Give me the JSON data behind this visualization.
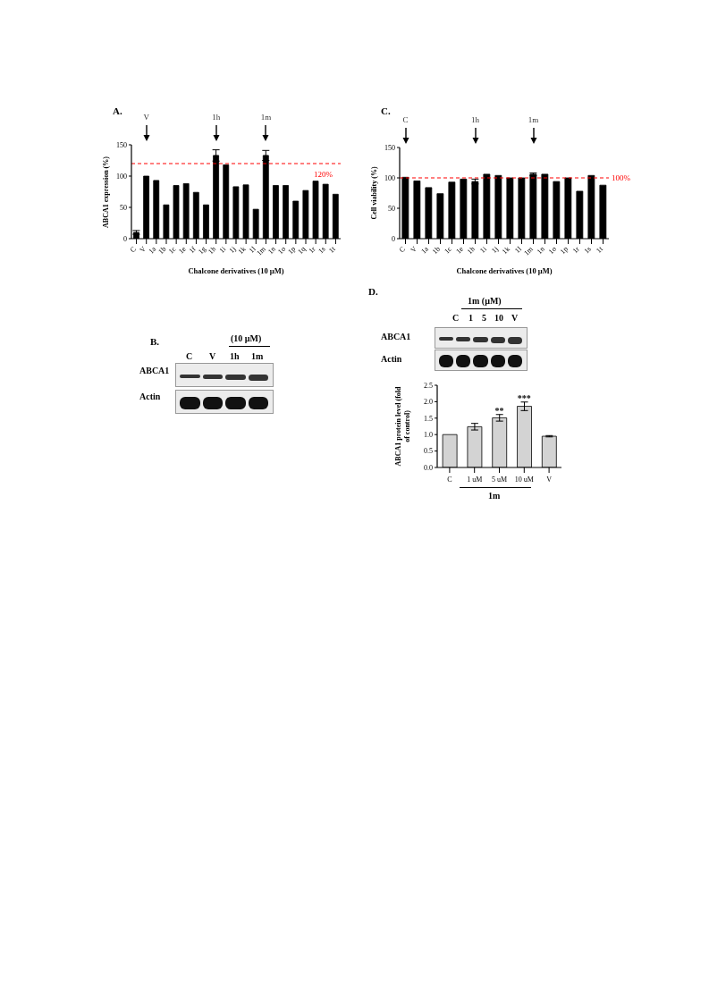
{
  "chart_data": [
    {
      "type": "bar",
      "title": "A.",
      "categories": [
        "C",
        "V",
        "1a",
        "1b",
        "1c",
        "1e",
        "1f",
        "1g",
        "1h",
        "1i",
        "1j",
        "1k",
        "1l",
        "1m",
        "1n",
        "1o",
        "1p",
        "1q",
        "1r",
        "1s",
        "1t"
      ],
      "values": [
        10,
        100,
        93,
        54,
        85,
        88,
        74,
        54,
        133,
        118,
        83,
        86,
        47,
        133,
        85,
        85,
        60,
        77,
        92,
        87,
        71
      ],
      "errors": [
        3,
        null,
        null,
        null,
        null,
        null,
        null,
        null,
        9,
        null,
        null,
        null,
        null,
        8,
        null,
        null,
        null,
        null,
        null,
        null,
        null
      ],
      "color": "#000000",
      "xlabel": "Chalcone derivatives (10 µM)",
      "ylabel": "ABCA1 expression (%)",
      "ylim": [
        0,
        150
      ],
      "yticks": [
        0,
        50,
        100,
        150
      ],
      "ref_lines": [
        {
          "axis": "y",
          "value": 120,
          "label": "120%",
          "color": "#ff0000",
          "line_style": "dashed"
        }
      ],
      "annotations": [
        "V",
        "1h",
        "1m"
      ]
    },
    {
      "type": "bar",
      "title": "C.",
      "categories": [
        "C",
        "V",
        "1a",
        "1b",
        "1c",
        "1e",
        "1h",
        "1i",
        "1j",
        "1k",
        "1l",
        "1m",
        "1n",
        "1o",
        "1p",
        "1r",
        "1s",
        "1t"
      ],
      "values": [
        101,
        95,
        84,
        74,
        93,
        98,
        94,
        106,
        104,
        100,
        100,
        106,
        106,
        94,
        100,
        78,
        104,
        88
      ],
      "errors": [
        null,
        null,
        null,
        null,
        null,
        null,
        4,
        null,
        null,
        null,
        null,
        2,
        null,
        null,
        null,
        null,
        null,
        null
      ],
      "color": "#000000",
      "xlabel": "Chalcone derivatives (10 µM)",
      "ylabel": "Cell viability (%)",
      "ylim": [
        0,
        150
      ],
      "yticks": [
        0,
        50,
        100,
        150
      ],
      "ref_lines": [
        {
          "axis": "y",
          "value": 100,
          "label": "100%",
          "color": "#ff0000",
          "line_style": "dashed"
        }
      ],
      "annotations": [
        "C",
        "1h",
        "1m"
      ]
    },
    {
      "type": "other",
      "title": "B.",
      "annotations": [
        "(10 µM)",
        "C",
        "V",
        "1h",
        "1m",
        "ABCA1",
        "Actin"
      ]
    },
    {
      "type": "bar",
      "title": "D.",
      "categories": [
        "C",
        "1 uM",
        "5 uM",
        "10 uM",
        "V"
      ],
      "values": [
        1,
        1.24,
        1.51,
        1.86,
        0.95
      ],
      "errors": [
        null,
        0.1,
        0.1,
        0.13,
        0.02
      ],
      "color": "#d3d3d3",
      "ylabel": "ABCA1 protein level (fold of control)",
      "ylim": [
        0,
        2.5
      ],
      "yticks": [
        {
          "value": 0,
          "label": "0.0"
        },
        {
          "value": 0.5,
          "label": "0.5"
        },
        {
          "value": 1,
          "label": "1.0"
        },
        {
          "value": 1.5,
          "label": "1.5"
        },
        {
          "value": 2,
          "label": "2.0"
        },
        {
          "value": 2.5,
          "label": "2.5"
        }
      ],
      "annotations": [
        {
          "text": "**",
          "x": "5 uM",
          "y": 1.72
        },
        {
          "text": "***",
          "x": "10 uM",
          "y": 2.08
        },
        "1m",
        "1m (µM)",
        "C",
        "1",
        "5",
        "10",
        "V",
        "ABCA1",
        "Actin"
      ]
    }
  ]
}
